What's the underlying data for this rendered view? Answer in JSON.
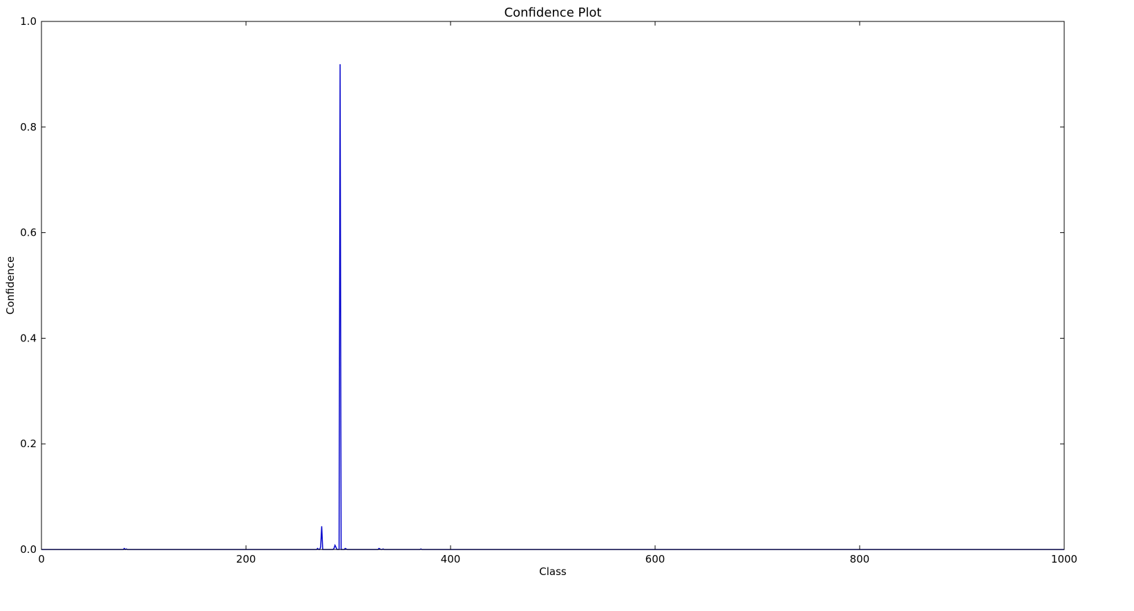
{
  "chart_data": {
    "type": "line",
    "title": "Confidence Plot",
    "xlabel": "Class",
    "ylabel": "Confidence",
    "xlim": [
      0,
      1000
    ],
    "ylim": [
      0.0,
      1.0
    ],
    "xticks": [
      0,
      200,
      400,
      600,
      800,
      1000
    ],
    "xtick_labels": [
      "0",
      "200",
      "400",
      "600",
      "800",
      "1000"
    ],
    "yticks": [
      0.0,
      0.2,
      0.4,
      0.6,
      0.8,
      1.0
    ],
    "ytick_labels": [
      "0.0",
      "0.2",
      "0.4",
      "0.6",
      "0.8",
      "1.0"
    ],
    "grid": false,
    "color": "#0000cc",
    "series": [
      {
        "x": [
          0,
          80,
          81,
          82,
          83,
          84,
          85,
          100,
          200,
          268,
          269,
          270,
          271,
          272,
          273,
          274,
          275,
          276,
          277,
          285,
          286,
          287,
          288,
          289,
          290,
          291,
          292,
          293,
          294,
          295,
          296,
          297,
          298,
          299,
          300,
          328,
          329,
          330,
          331,
          332,
          333,
          334,
          335,
          336,
          345,
          370,
          371,
          372,
          373,
          1000
        ],
        "y": [
          0.0,
          0.0,
          0.002,
          0.0,
          0.001,
          0.0,
          0.0,
          0.0,
          0.0,
          0.0,
          0.0,
          0.002,
          0.0,
          0.0,
          0.005,
          0.044,
          0.0,
          0.0,
          0.0,
          0.0,
          0.002,
          0.008,
          0.004,
          0.0,
          0.0,
          0.0,
          0.919,
          0.0,
          0.0,
          0.0,
          0.0,
          0.002,
          0.001,
          0.0,
          0.0,
          0.0,
          0.0,
          0.002,
          0.001,
          0.0,
          0.0,
          0.001,
          0.0,
          0.0,
          0.0,
          0.0,
          0.001,
          0.0,
          0.0,
          0.0
        ]
      }
    ]
  }
}
